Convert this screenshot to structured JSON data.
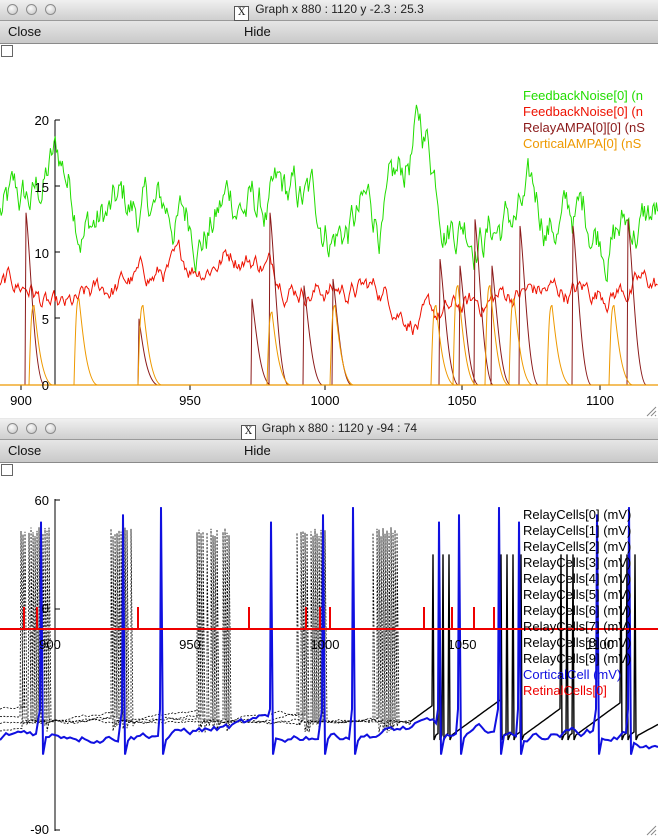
{
  "window1": {
    "title": "Graph  x 880 : 1120  y -2.3 : 25.3",
    "menu": {
      "close": "Close",
      "hide": "Hide"
    },
    "xticks": [
      "900",
      "950",
      "1000",
      "1050",
      "1100"
    ],
    "yticks": [
      "0",
      "5",
      "10",
      "15",
      "20"
    ],
    "legend": [
      "FeedbackNoise[0] (n",
      "FeedbackNoise[0] (n",
      "RelayAMPA[0][0] (nS",
      "CorticalAMPA[0] (nS"
    ],
    "colors": {
      "feedback1": "#22dd00",
      "feedback2": "#ee1100",
      "relay": "#8b1a1a",
      "cortical": "#ee9900"
    }
  },
  "window2": {
    "title": "Graph  x 880 : 1120  y -94 : 74",
    "menu": {
      "close": "Close",
      "hide": "Hide"
    },
    "xticks": [
      "900",
      "950",
      "1000",
      "1050",
      "1100"
    ],
    "yticks": [
      "60",
      "0",
      "-90"
    ],
    "legend": [
      "RelayCells[0] (mV)",
      "RelayCells[1] (mV)",
      "RelayCells[2] (mV)",
      "RelayCells[3] (mV)",
      "RelayCells[4] (mV)",
      "RelayCells[5] (mV)",
      "RelayCells[6] (mV)",
      "RelayCells[7] (mV)",
      "RelayCells[8] (mV)",
      "RelayCells[9] (mV)",
      "CorticalCell (mV)",
      "RetinalCells[0]"
    ],
    "colors": {
      "relay": "#000000",
      "cortical": "#1010e0",
      "retinal": "#ee0000"
    }
  }
}
